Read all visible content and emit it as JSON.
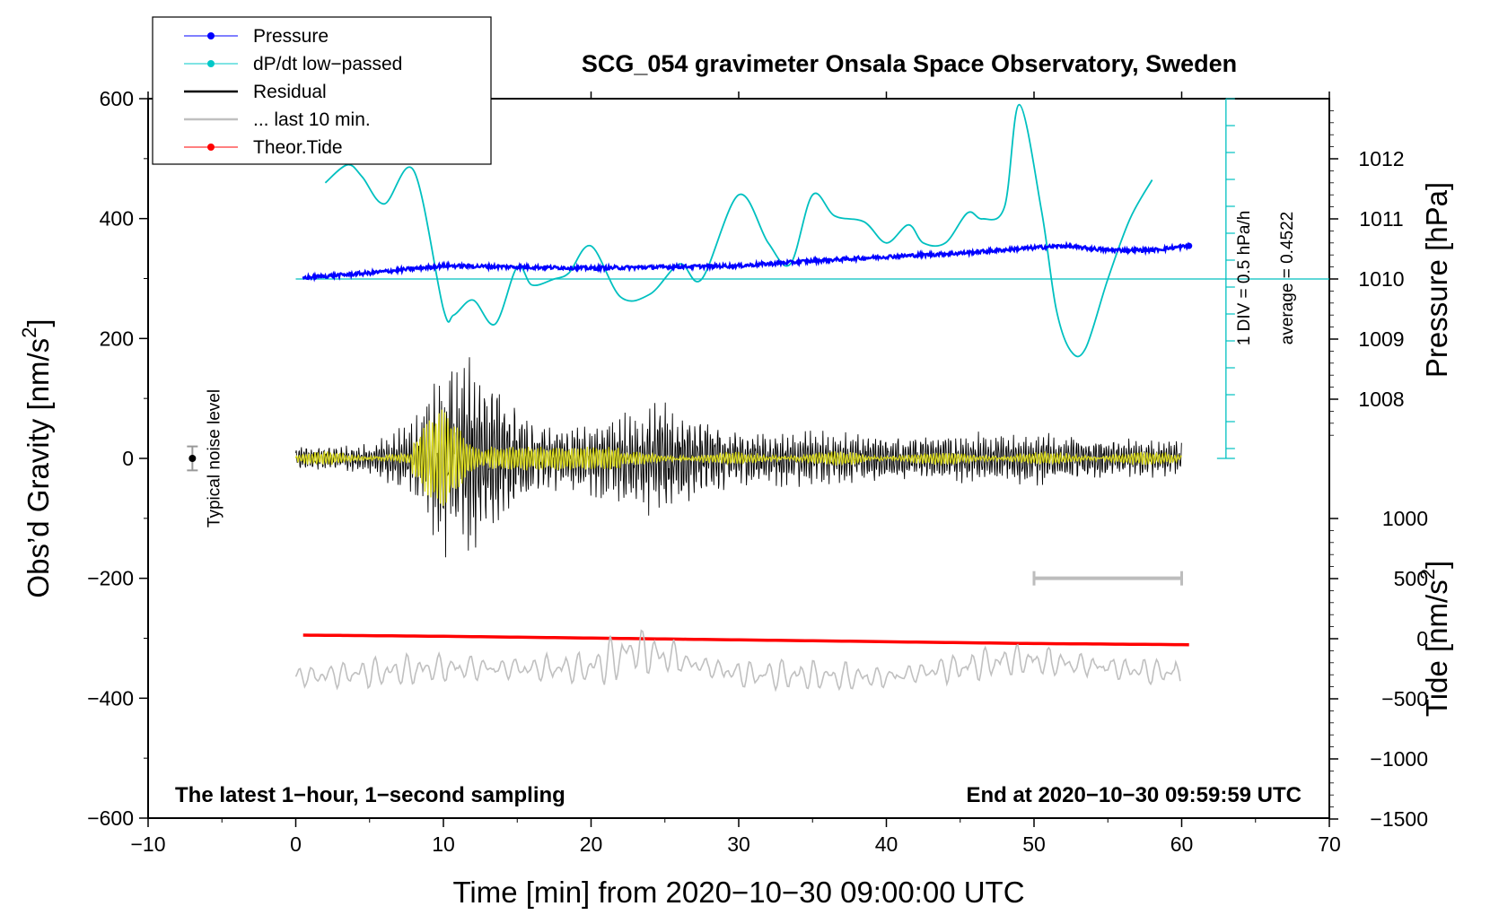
{
  "chart_data": {
    "type": "line",
    "title": "SCG_054 gravimeter Onsala Space Observatory, Sweden",
    "xlabel": "Time [min] from 2020−10−30 09:00:00 UTC",
    "ylabel_left": "Obs’d Gravity [nm/s",
    "ylabel_left_sup": "2",
    "ylabel_left_end": "]",
    "ylabel_right_top": "Pressure [hPa]",
    "ylabel_right_bottom": "Tide [nm/s",
    "ylabel_right_bottom_sup": "2",
    "ylabel_right_bottom_end": "]",
    "xlim": [
      -10,
      70
    ],
    "ylim": [
      -600,
      600
    ],
    "pressure_lim": [
      1007,
      1013
    ],
    "tide_lim": [
      -1500,
      1000
    ],
    "x_ticks": [
      -10,
      0,
      10,
      20,
      30,
      40,
      50,
      60,
      70
    ],
    "x_tick_labels": [
      "−10",
      "0",
      "10",
      "20",
      "30",
      "40",
      "50",
      "60",
      "70"
    ],
    "y_ticks": [
      -600,
      -400,
      -200,
      0,
      200,
      400,
      600
    ],
    "y_tick_labels": [
      "−600",
      "−400",
      "−200",
      "0",
      "200",
      "400",
      "600"
    ],
    "pressure_ticks": [
      1008,
      1009,
      1010,
      1011,
      1012
    ],
    "pressure_tick_labels": [
      "1008",
      "1009",
      "1010",
      "1011",
      "1012"
    ],
    "tide_ticks": [
      -1500,
      -1000,
      -500,
      0,
      500,
      1000
    ],
    "tide_tick_labels": [
      "−1500",
      "−1000",
      "−500",
      "0",
      "500",
      "1000"
    ],
    "legend": {
      "position": "top-left",
      "entries": [
        {
          "label": "Pressure",
          "color": "#0000ff",
          "marker": true
        },
        {
          "label": "dP/dt low−passed",
          "color": "#00c8c8",
          "marker": true
        },
        {
          "label": "Residual",
          "color": "#000000",
          "marker": false
        },
        {
          "label": "... last 10 min.",
          "color": "#c0c0c0",
          "marker": false
        },
        {
          "label": "Theor.Tide",
          "color": "#ff0000",
          "marker": true
        }
      ]
    },
    "series": [
      {
        "name": "Pressure",
        "color": "#0000ff",
        "units": "hPa",
        "x": [
          0.5,
          5,
          10,
          15,
          20,
          25,
          30,
          35,
          40,
          45,
          50,
          52,
          55,
          58,
          60.5
        ],
        "values": [
          1010.02,
          1010.1,
          1010.22,
          1010.2,
          1010.18,
          1010.2,
          1010.22,
          1010.3,
          1010.37,
          1010.43,
          1010.52,
          1010.55,
          1010.48,
          1010.48,
          1010.55
        ]
      },
      {
        "name": "dP/dt low-passed",
        "color": "#00c8c8",
        "units": "scaled, 1 DIV = 0.5 hPa/h, baseline at 1010 hPa",
        "x": [
          2,
          3.5,
          4.5,
          6,
          8,
          10,
          10.7,
          12,
          13.5,
          15,
          16,
          17.5,
          18.5,
          20,
          22,
          24,
          26,
          27.5,
          30,
          32,
          33.5,
          35,
          36.5,
          38.5,
          40,
          41.5,
          42.5,
          44,
          45.5,
          46.5,
          48,
          49,
          50.5,
          51.5,
          52.5,
          53.5,
          55,
          56.5,
          58
        ],
        "values": [
          1011.6,
          1011.9,
          1011.7,
          1011.25,
          1011.8,
          1009.5,
          1009.4,
          1009.65,
          1009.25,
          1010.2,
          1009.9,
          1010.0,
          1010.1,
          1010.55,
          1009.7,
          1009.75,
          1010.25,
          1010.0,
          1011.4,
          1010.6,
          1010.25,
          1011.4,
          1011.05,
          1010.95,
          1010.6,
          1010.9,
          1010.6,
          1010.6,
          1011.1,
          1011.0,
          1011.2,
          1012.9,
          1011.15,
          1009.5,
          1008.8,
          1008.85,
          1010.0,
          1011.0,
          1011.65
        ]
      },
      {
        "name": "Residual",
        "color": "#000000",
        "units": "nm/s2",
        "x": [
          0,
          5,
          8,
          10,
          12,
          14,
          16,
          20,
          25,
          30,
          40,
          50,
          60
        ],
        "values": [
          20,
          25,
          60,
          170,
          170,
          140,
          60,
          60,
          100,
          50,
          40,
          45,
          30
        ]
      },
      {
        "name": "... last 10 min.",
        "color": "#c0c0c0",
        "units": "nm/s2 (offset trace)",
        "x": [
          0,
          10,
          20,
          23,
          30,
          40,
          49,
          60
        ],
        "values": [
          -365,
          -350,
          -350,
          -320,
          -360,
          -365,
          -335,
          -360
        ]
      },
      {
        "name": "Theor.Tide",
        "color": "#ff0000",
        "units": "nm/s2",
        "x": [
          0.5,
          10,
          20,
          30,
          40,
          50,
          60.5
        ],
        "values": [
          30,
          20,
          5,
          -10,
          -25,
          -40,
          -50
        ]
      }
    ],
    "annotations": {
      "noise_label": "Typical noise level",
      "noise_x": -7,
      "noise_value": 0,
      "noise_halfwidth": 20,
      "scale_bar": {
        "x_start": 50,
        "x_end": 60,
        "y": -200
      },
      "pressure_scale_label": "1 DIV = 0.5 hPa/h",
      "average_label": "average = 0.4522",
      "bottom_left_note": "The latest 1−hour, 1−second sampling",
      "bottom_right_note": "End at 2020−10−30 09:59:59 UTC"
    }
  }
}
